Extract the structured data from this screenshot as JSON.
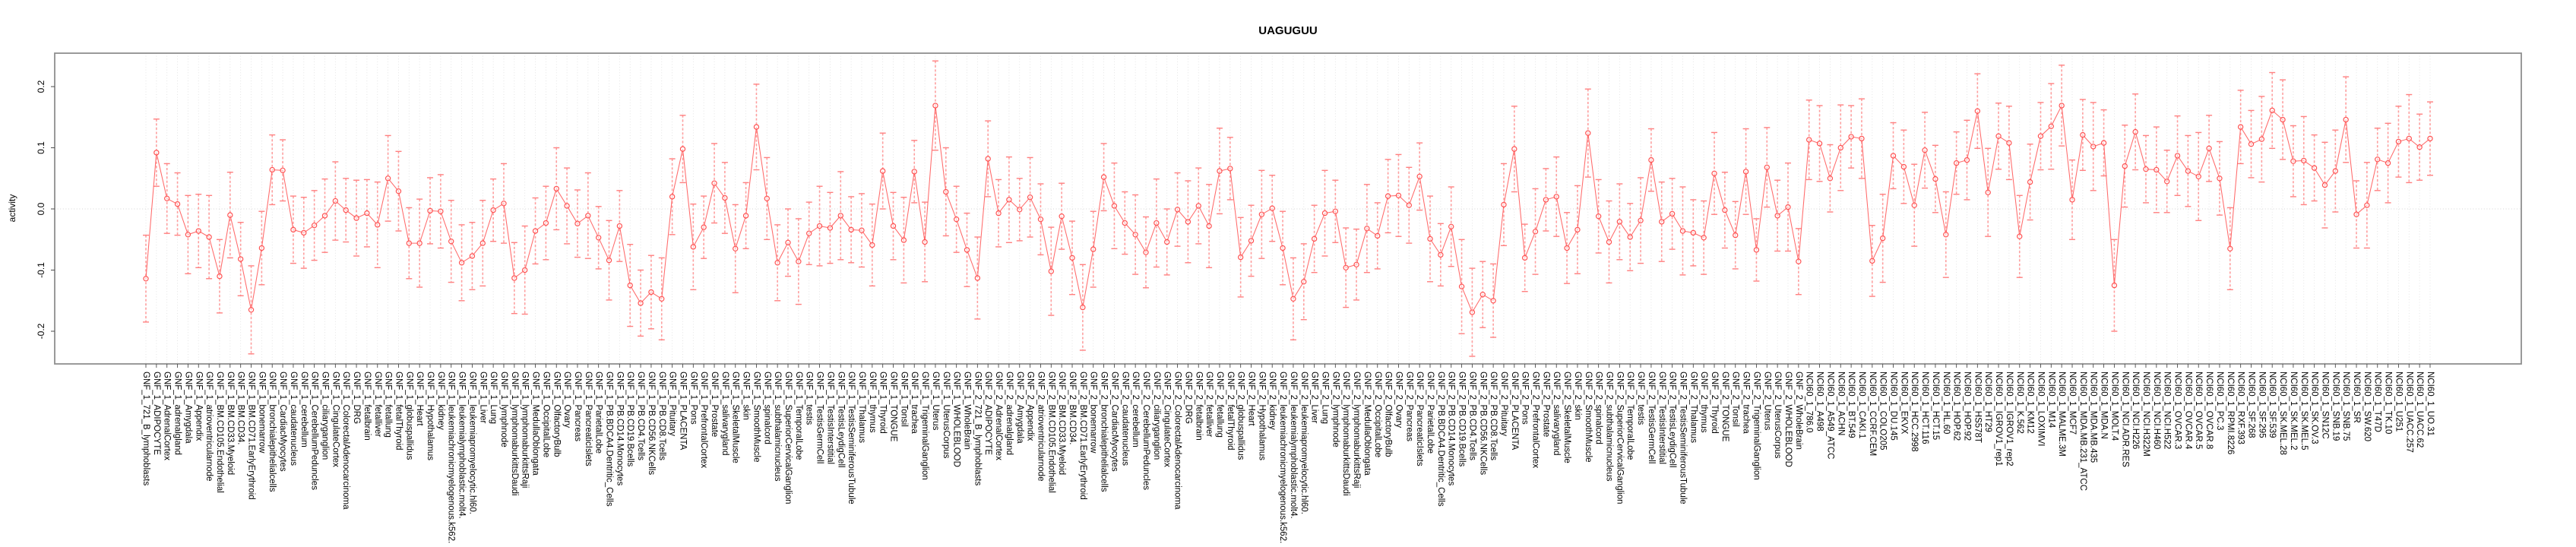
{
  "title": "UAGUGUU",
  "ylabel": "activity",
  "chart_data": {
    "type": "scatter",
    "title": "UAGUGUU",
    "xlabel": "",
    "ylabel": "activity",
    "ylim": [
      -0.253,
      0.255
    ],
    "yticks": [
      -0.2,
      -0.1,
      0,
      0.1,
      0.2
    ],
    "ytick_labels": [
      "-0.2",
      "-0.1",
      "0.0",
      "0.1",
      "0.2"
    ],
    "grid": "vertical dotted gridline at every category; horizontal dotted line at y=0",
    "legend": "none",
    "marker": "open-circle",
    "error_bars": true,
    "series_groups": [
      "GNF_1 (79 tissues)",
      "GNF_2 (79 tissues)",
      "NCI60_1 (60 cell lines)"
    ],
    "colors": {
      "point": "#ff4f4f",
      "line": "#ff5a5a",
      "error_bar": "#ff8f8f",
      "error_cap": "#ff8080",
      "grid": "#dedede",
      "zero_line": "#d4d4d4",
      "box": "#8f8f8f",
      "tick": "#4d4d4d",
      "text": "#000000"
    },
    "categories": [
      "GNF_1_721_B_lymphoblasts",
      "GNF_1_ADIPOCYTE",
      "GNF_1_AdrenalCortex",
      "GNF_1_adrenalgland",
      "GNF_1_Amygdala",
      "GNF_1_Appendix",
      "GNF_1_atrioventricularnode",
      "GNF_1_BM.CD105.Endothelial",
      "GNF_1_BM.CD33.Myeloid",
      "GNF_1_BM.CD34.",
      "GNF_1_BM.CD71.EarlyErythroid",
      "GNF_1_bonemarrow",
      "GNF_1_bronchialepithelialcells",
      "GNF_1_CardiacMyocytes",
      "GNF_1_caudatenucleus",
      "GNF_1_cerebellum",
      "GNF_1_CerebellumPeduncles",
      "GNF_1_ciliaryganglion",
      "GNF_1_CingulateCortex",
      "GNF_1_ColorectalAdenocarcinoma",
      "GNF_1_DRG",
      "GNF_1_fetalbrain",
      "GNF_1_fetalliver",
      "GNF_1_fetallung",
      "GNF_1_fetalThyroid",
      "GNF_1_globuspallidus",
      "GNF_1_Heart",
      "GNF_1_Hypothalamus",
      "GNF_1_kidney",
      "GNF_1_leukemiachronicmyelogenous.k562.",
      "GNF_1_leukemialymphoblastic.molt4.",
      "GNF_1_leukemiapromyelocytic.hl60.",
      "GNF_1_Liver",
      "GNF_1_Lung",
      "GNF_1_lymphnode",
      "GNF_1_lymphomaburkittsDaudi",
      "GNF_1_lymphomaburkittsRaji",
      "GNF_1_MedullaOblongata",
      "GNF_1_OccipitalLobe",
      "GNF_1_OlfactoryBulb",
      "GNF_1_Ovary",
      "GNF_1_Pancreas",
      "GNF_1_PancreaticIslets",
      "GNF_1_ParietalLobe",
      "GNF_1_PB.BDCA4.Dentritic_Cells",
      "GNF_1_PB.CD14.Monocytes",
      "GNF_1_PB.CD19.Bcells",
      "GNF_1_PB.CD4.Tcells",
      "GNF_1_PB.CD56.NKCells",
      "GNF_1_PB.CD8.Tcells",
      "GNF_1_Pituitary",
      "GNF_1_PLACENTA",
      "GNF_1_Pons",
      "GNF_1_PrefrontalCortex",
      "GNF_1_Prostate",
      "GNF_1_salivarygland",
      "GNF_1_SkeletalMuscle",
      "GNF_1_skin",
      "GNF_1_SmoothMuscle",
      "GNF_1_spinalcord",
      "GNF_1_subthalamicnucleus",
      "GNF_1_SuperiorCervicalGanglion",
      "GNF_1_TemporalLobe",
      "GNF_1_testis",
      "GNF_1_TestisGermCell",
      "GNF_1_TestisInterstitial",
      "GNF_1_TestisLeydigCell",
      "GNF_1_TestisSeminiferousTubule",
      "GNF_1_Thalamus",
      "GNF_1_thymus",
      "GNF_1_Thyroid",
      "GNF_1_TONGUE",
      "GNF_1_Tonsil",
      "GNF_1_trachea",
      "GNF_1_TrigeminalGanglion",
      "GNF_1_Uterus",
      "GNF_1_UterusCorpus",
      "GNF_1_WHOLEBLOOD",
      "GNF_1_WholeBrain",
      "GNF_2_721_B_lymphoblasts",
      "GNF_2_ADIPOCYTE",
      "GNF_2_AdrenalCortex",
      "GNF_2_adrenalgland",
      "GNF_2_Amygdala",
      "GNF_2_Appendix",
      "GNF_2_atrioventricularnode",
      "GNF_2_BM.CD105.Endothelial",
      "GNF_2_BM.CD33.Myeloid",
      "GNF_2_BM.CD34.",
      "GNF_2_BM.CD71.EarlyErythroid",
      "GNF_2_bonemarrow",
      "GNF_2_bronchialepithelialcells",
      "GNF_2_CardiacMyocytes",
      "GNF_2_caudatenucleus",
      "GNF_2_cerebellum",
      "GNF_2_CerebellumPeduncles",
      "GNF_2_ciliaryganglion",
      "GNF_2_CingulateCortex",
      "GNF_2_ColorectalAdenocarcinoma",
      "GNF_2_DRG",
      "GNF_2_fetalbrain",
      "GNF_2_fetalliver",
      "GNF_2_fetallung",
      "GNF_2_fetalThyroid",
      "GNF_2_globuspallidus",
      "GNF_2_Heart",
      "GNF_2_Hypothalamus",
      "GNF_2_kidney",
      "GNF_2_leukemiachronicmyelogenous.k562.",
      "GNF_2_leukemialymphoblastic.molt4.",
      "GNF_2_leukemiapromyelocytic.hl60.",
      "GNF_2_Liver",
      "GNF_2_Lung",
      "GNF_2_lymphnode",
      "GNF_2_lymphomaburkittsDaudi",
      "GNF_2_lymphomaburkittsRaji",
      "GNF_2_MedullaOblongata",
      "GNF_2_OccipitalLobe",
      "GNF_2_OlfactoryBulb",
      "GNF_2_Ovary",
      "GNF_2_Pancreas",
      "GNF_2_PancreaticIslets",
      "GNF_2_ParietalLobe",
      "GNF_2_PB.BDCA4.Dentritic_Cells",
      "GNF_2_PB.CD14.Monocytes",
      "GNF_2_PB.CD19.Bcells",
      "GNF_2_PB.CD4.Tcells",
      "GNF_2_PB.CD56.NKCells",
      "GNF_2_PB.CD8.Tcells",
      "GNF_2_Pituitary",
      "GNF_2_PLACENTA",
      "GNF_2_Pons",
      "GNF_2_PrefrontalCortex",
      "GNF_2_Prostate",
      "GNF_2_salivarygland",
      "GNF_2_SkeletalMuscle",
      "GNF_2_skin",
      "GNF_2_SmoothMuscle",
      "GNF_2_spinalcord",
      "GNF_2_subthalamicnucleus",
      "GNF_2_SuperiorCervicalGanglion",
      "GNF_2_TemporalLobe",
      "GNF_2_testis",
      "GNF_2_TestisGermCell",
      "GNF_2_TestisInterstitial",
      "GNF_2_TestisLeydigCell",
      "GNF_2_TestisSeminiferousTubule",
      "GNF_2_Thalamus",
      "GNF_2_thymus",
      "GNF_2_Thyroid",
      "GNF_2_TONGUE",
      "GNF_2_Tonsil",
      "GNF_2_trachea",
      "GNF_2_TrigeminalGanglion",
      "GNF_2_Uterus",
      "GNF_2_UterusCorpus",
      "GNF_2_WHOLEBLOOD",
      "GNF_2_WholeBrain",
      "NCI60_1_786.0",
      "NCI60_1_A498",
      "NCI60_1_A549_ATCC",
      "NCI60_1_ACHN",
      "NCI60_1_BT.549",
      "NCI60_1_CAKI.1",
      "NCI60_1_CCRF.CEM",
      "NCI60_1_COLO205",
      "NCI60_1_DU.145",
      "NCI60_1_EKVX",
      "NCI60_1_HCC.2998",
      "NCI60_1_HCT.116",
      "NCI60_1_HCT.15",
      "NCI60_1_HL.60",
      "NCI60_1_HOP.62",
      "NCI60_1_HOP.92",
      "NCI60_1_HS578T",
      "NCI60_1_HT29",
      "NCI60_1_IGROV1_rep1",
      "NCI60_1_IGROV1_rep2",
      "NCI60_1_K.562",
      "NCI60_1_KM12",
      "NCI60_1_LOXIMVI",
      "NCI60_1_M14",
      "NCI60_1_MALME.3M",
      "NCI60_1_MCF7",
      "NCI60_1_MDA.MB.231_ATCC",
      "NCI60_1_MDA.MB.435",
      "NCI60_1_MDA.N",
      "NCI60_1_MOLT.4",
      "NCI60_1_NCI.ADR.RES",
      "NCI60_1_NCI.H226",
      "NCI60_1_NCI.H322M",
      "NCI60_1_NCI.H460",
      "NCI60_1_NCI.H522",
      "NCI60_1_OVCAR.3",
      "NCI60_1_OVCAR.4",
      "NCI60_1_OVCAR.5",
      "NCI60_1_OVCAR.8",
      "NCI60_1_PC.3",
      "NCI60_1_RPMI.8226",
      "NCI60_1_RXF.393",
      "NCI60_1_SF.268",
      "NCI60_1_SF.295",
      "NCI60_1_SF.539",
      "NCI60_1_SK.MEL.28",
      "NCI60_1_SK.MEL.2",
      "NCI60_1_SK.MEL.5",
      "NCI60_1_SK.OV.3",
      "NCI60_1_SN12C",
      "NCI60_1_SNB.19",
      "NCI60_1_SNB.75",
      "NCI60_1_SR",
      "NCI60_1_SW.620",
      "NCI60_1_T47D",
      "NCI60_1_TK.10",
      "NCI60_1_U251",
      "NCI60_1_UACC.257",
      "NCI60_1_UACC.62",
      "NCI60_1_UO.31"
    ],
    "values": [
      -0.114,
      0.092,
      0.017,
      0.008,
      -0.042,
      -0.036,
      -0.046,
      -0.11,
      -0.01,
      -0.082,
      -0.165,
      -0.064,
      0.064,
      0.063,
      -0.034,
      -0.039,
      -0.027,
      -0.011,
      0.013,
      -0.002,
      -0.015,
      -0.007,
      -0.026,
      0.05,
      0.029,
      -0.056,
      -0.056,
      -0.003,
      -0.004,
      -0.053,
      -0.088,
      -0.077,
      -0.056,
      -0.002,
      0.009,
      -0.113,
      -0.1,
      -0.036,
      -0.023,
      0.033,
      0.005,
      -0.024,
      -0.011,
      -0.047,
      -0.084,
      -0.028,
      -0.125,
      -0.154,
      -0.136,
      -0.147,
      0.02,
      0.098,
      -0.062,
      -0.03,
      0.042,
      0.018,
      -0.065,
      -0.011,
      0.134,
      0.017,
      -0.088,
      -0.055,
      -0.086,
      -0.04,
      -0.028,
      -0.031,
      -0.011,
      -0.034,
      -0.035,
      -0.059,
      0.062,
      -0.028,
      -0.051,
      0.061,
      -0.054,
      0.169,
      0.028,
      -0.017,
      -0.067,
      -0.113,
      0.082,
      -0.007,
      0.015,
      -0.001,
      0.019,
      -0.017,
      -0.102,
      -0.012,
      -0.08,
      -0.161,
      -0.066,
      0.052,
      0.005,
      -0.023,
      -0.042,
      -0.071,
      -0.023,
      -0.054,
      -0.001,
      -0.021,
      0.005,
      -0.028,
      0.062,
      0.066,
      -0.079,
      -0.052,
      -0.009,
      0.001,
      -0.064,
      -0.147,
      -0.119,
      -0.049,
      -0.007,
      -0.004,
      -0.096,
      -0.091,
      -0.032,
      -0.044,
      0.021,
      0.022,
      0.006,
      0.053,
      -0.049,
      -0.075,
      -0.029,
      -0.127,
      -0.169,
      -0.14,
      -0.15,
      0.007,
      0.098,
      -0.08,
      -0.037,
      0.015,
      0.02,
      -0.064,
      -0.034,
      0.124,
      -0.012,
      -0.054,
      -0.021,
      -0.046,
      -0.019,
      0.08,
      -0.021,
      -0.008,
      -0.036,
      -0.039,
      -0.047,
      0.058,
      -0.002,
      -0.043,
      0.061,
      -0.067,
      0.068,
      -0.011,
      0.003,
      -0.086,
      0.113,
      0.107,
      0.05,
      0.1,
      0.118,
      0.115,
      -0.085,
      -0.048,
      0.087,
      0.069,
      0.006,
      0.096,
      0.049,
      -0.042,
      0.075,
      0.08,
      0.16,
      0.027,
      0.119,
      0.108,
      -0.045,
      0.044,
      0.119,
      0.135,
      0.169,
      0.015,
      0.121,
      0.102,
      0.108,
      -0.125,
      0.07,
      0.126,
      0.065,
      0.064,
      0.045,
      0.087,
      0.062,
      0.053,
      0.099,
      0.05,
      -0.065,
      0.134,
      0.106,
      0.114,
      0.161,
      0.146,
      0.078,
      0.079,
      0.067,
      0.039,
      0.062,
      0.146,
      -0.009,
      0.006,
      0.081,
      0.075,
      0.11,
      0.115,
      0.101,
      0.115
    ],
    "errors": [
      0.071,
      0.055,
      0.057,
      0.051,
      0.064,
      0.06,
      0.068,
      0.06,
      0.07,
      0.06,
      0.072,
      0.06,
      0.057,
      0.05,
      0.055,
      0.058,
      0.057,
      0.06,
      0.064,
      0.052,
      0.062,
      0.055,
      0.07,
      0.07,
      0.065,
      0.058,
      0.072,
      0.054,
      0.06,
      0.067,
      0.062,
      0.055,
      0.07,
      0.051,
      0.065,
      0.058,
      0.072,
      0.054,
      0.06,
      0.067,
      0.062,
      0.055,
      0.07,
      0.051,
      0.065,
      0.058,
      0.067,
      0.054,
      0.06,
      0.067,
      0.062,
      0.055,
      0.07,
      0.051,
      0.065,
      0.058,
      0.072,
      0.054,
      0.07,
      0.067,
      0.062,
      0.055,
      0.07,
      0.051,
      0.065,
      0.058,
      0.072,
      0.054,
      0.06,
      0.067,
      0.062,
      0.055,
      0.07,
      0.051,
      0.065,
      0.073,
      0.072,
      0.054,
      0.06,
      0.067,
      0.062,
      0.055,
      0.07,
      0.051,
      0.065,
      0.058,
      0.072,
      0.054,
      0.06,
      0.07,
      0.062,
      0.055,
      0.07,
      0.051,
      0.065,
      0.058,
      0.072,
      0.054,
      0.06,
      0.067,
      0.062,
      0.068,
      0.07,
      0.051,
      0.065,
      0.058,
      0.072,
      0.054,
      0.06,
      0.067,
      0.062,
      0.055,
      0.07,
      0.051,
      0.065,
      0.058,
      0.072,
      0.054,
      0.06,
      0.067,
      0.062,
      0.055,
      0.07,
      0.051,
      0.065,
      0.077,
      0.072,
      0.054,
      0.06,
      0.067,
      0.07,
      0.055,
      0.07,
      0.051,
      0.065,
      0.058,
      0.072,
      0.072,
      0.06,
      0.067,
      0.062,
      0.055,
      0.07,
      0.051,
      0.065,
      0.058,
      0.072,
      0.054,
      0.06,
      0.067,
      0.062,
      0.055,
      0.07,
      0.051,
      0.065,
      0.058,
      0.072,
      0.054,
      0.065,
      0.062,
      0.055,
      0.07,
      0.051,
      0.065,
      0.058,
      0.072,
      0.054,
      0.06,
      0.067,
      0.062,
      0.055,
      0.07,
      0.051,
      0.065,
      0.061,
      0.072,
      0.054,
      0.06,
      0.067,
      0.062,
      0.055,
      0.07,
      0.066,
      0.065,
      0.058,
      0.072,
      0.054,
      0.075,
      0.067,
      0.062,
      0.055,
      0.07,
      0.051,
      0.065,
      0.058,
      0.072,
      0.054,
      0.06,
      0.067,
      0.06,
      0.055,
      0.07,
      0.062,
      0.065,
      0.058,
      0.072,
      0.054,
      0.07,
      0.067,
      0.07,
      0.055,
      0.07,
      0.051,
      0.065,
      0.058,
      0.072,
      0.054,
      0.06
    ]
  }
}
